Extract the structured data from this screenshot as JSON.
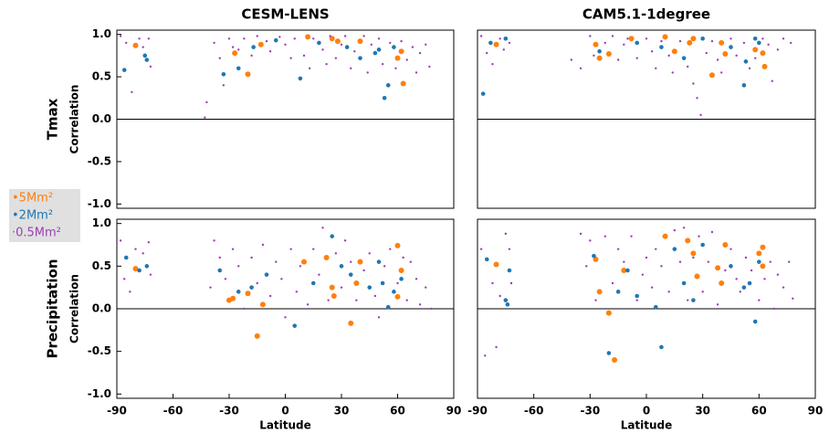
{
  "chart_data": [
    {
      "type": "scatter",
      "title": "CESM-LENS",
      "row_label": "Tmax",
      "ylabel": "Correlation",
      "legend": true,
      "zero_line": true,
      "xlim": [
        -90,
        90
      ],
      "ylim": [
        -1.05,
        1.05
      ],
      "yticks": [
        {
          "value": -1,
          "label": "-1.0"
        },
        -0.5,
        {
          "value": 0,
          "label": "0.0"
        },
        0.5,
        {
          "value": 1,
          "label": "1.0"
        }
      ],
      "series": [
        {
          "name": "•5Mm²",
          "color": "#ff7f0e",
          "x": [
            -80,
            -27,
            -20,
            -13,
            12,
            25,
            28,
            40,
            60,
            62,
            63
          ],
          "values": [
            0.87,
            0.78,
            0.53,
            0.88,
            0.97,
            0.95,
            0.92,
            0.92,
            0.72,
            0.8,
            0.42
          ]
        },
        {
          "name": "•2Mm²",
          "color": "#1f77b4",
          "x": [
            -86,
            -75,
            -74,
            -33,
            -25,
            -17,
            -5,
            8,
            18,
            33,
            40,
            50,
            53,
            55,
            58,
            48
          ],
          "values": [
            0.58,
            0.75,
            0.7,
            0.53,
            0.6,
            0.85,
            0.93,
            0.48,
            0.9,
            0.85,
            0.72,
            0.82,
            0.25,
            0.4,
            0.85,
            0.78
          ]
        },
        {
          "name": "·0.5Mm²",
          "color": "#9b3fb5",
          "x": [
            -88,
            -85,
            -82,
            -78,
            -76,
            -73,
            -72,
            -43,
            -42,
            -38,
            -35,
            -33,
            -30,
            -28,
            -25,
            -22,
            -18,
            -15,
            -10,
            -8,
            -3,
            0,
            3,
            5,
            10,
            13,
            15,
            20,
            22,
            24,
            27,
            30,
            32,
            35,
            37,
            42,
            44,
            46,
            50,
            52,
            56,
            59,
            62,
            65,
            68,
            70,
            72,
            75,
            77
          ],
          "values": [
            0.98,
            0.9,
            0.32,
            0.95,
            0.85,
            0.95,
            0.62,
            0.02,
            0.2,
            0.9,
            0.72,
            0.4,
            0.95,
            0.85,
            0.82,
            0.95,
            0.75,
            0.98,
            0.92,
            0.8,
            0.97,
            0.88,
            0.72,
            0.95,
            0.75,
            0.6,
            0.95,
            0.82,
            0.65,
            0.98,
            0.72,
            0.88,
            0.98,
            0.6,
            0.8,
            0.98,
            0.55,
            0.88,
            0.95,
            0.65,
            0.9,
            0.6,
            0.92,
            0.7,
            0.85,
            0.55,
            0.78,
            0.88,
            0.62
          ]
        }
      ]
    },
    {
      "type": "scatter",
      "title": "CAM5.1-1degree",
      "zero_line": true,
      "xlim": [
        -90,
        90
      ],
      "ylim": [
        -1.05,
        1.05
      ],
      "series": [
        {
          "color": "#ff7f0e",
          "x": [
            -80,
            -27,
            -25,
            -20,
            -8,
            10,
            15,
            23,
            25,
            35,
            40,
            42,
            58,
            62,
            63
          ],
          "values": [
            0.88,
            0.88,
            0.72,
            0.77,
            0.95,
            0.97,
            0.8,
            0.9,
            0.95,
            0.52,
            0.9,
            0.77,
            0.82,
            0.78,
            0.62
          ]
        },
        {
          "color": "#1f77b4",
          "x": [
            -87,
            -83,
            -75,
            -25,
            -5,
            8,
            20,
            30,
            45,
            52,
            53,
            58,
            60
          ],
          "values": [
            0.3,
            0.9,
            0.95,
            0.8,
            0.9,
            0.85,
            0.72,
            0.95,
            0.85,
            0.4,
            0.68,
            0.95,
            0.9
          ]
        },
        {
          "color": "#9b3fb5",
          "x": [
            -88,
            -85,
            -82,
            -78,
            -76,
            -73,
            -40,
            -35,
            -30,
            -28,
            -22,
            -18,
            -15,
            -12,
            -10,
            -5,
            0,
            3,
            5,
            8,
            12,
            14,
            18,
            22,
            25,
            27,
            29,
            32,
            35,
            38,
            40,
            45,
            48,
            52,
            55,
            58,
            62,
            65,
            67,
            70,
            73,
            77
          ],
          "values": [
            0.98,
            0.78,
            0.65,
            0.95,
            0.82,
            0.9,
            0.7,
            0.6,
            0.98,
            0.75,
            0.9,
            0.98,
            0.7,
            0.88,
            0.95,
            0.72,
            0.95,
            0.8,
            0.6,
            0.92,
            0.75,
            0.55,
            0.92,
            0.62,
            0.42,
            0.25,
            0.05,
            0.78,
            0.92,
            0.7,
            0.55,
            0.95,
            0.75,
            0.9,
            0.6,
            0.72,
            0.95,
            0.88,
            0.45,
            0.82,
            0.95,
            0.9
          ]
        }
      ]
    },
    {
      "type": "scatter",
      "row_label": "Precipitation",
      "ylabel": "Correlation",
      "xlabel": "Latitude",
      "zero_line": true,
      "xlim": [
        -90,
        90
      ],
      "ylim": [
        -1.05,
        1.05
      ],
      "xticks": [
        -90,
        -60,
        -30,
        0,
        30,
        60,
        90
      ],
      "yticks": [
        {
          "value": -1,
          "label": "-1.0"
        },
        -0.5,
        {
          "value": 0,
          "label": "0.0"
        },
        0.5,
        {
          "value": 1,
          "label": "1.0"
        }
      ],
      "series": [
        {
          "color": "#ff7f0e",
          "x": [
            -80,
            -30,
            -28,
            -20,
            -15,
            -12,
            10,
            22,
            25,
            26,
            35,
            38,
            40,
            60,
            62,
            60
          ],
          "values": [
            0.47,
            0.1,
            0.12,
            0.18,
            -0.32,
            0.05,
            0.55,
            0.6,
            0.25,
            0.15,
            -0.17,
            0.3,
            0.55,
            0.74,
            0.45,
            0.14
          ]
        },
        {
          "color": "#1f77b4",
          "x": [
            -85,
            -78,
            -74,
            -35,
            -25,
            -18,
            -10,
            5,
            15,
            25,
            30,
            35,
            45,
            52,
            55,
            58,
            62,
            50
          ],
          "values": [
            0.6,
            0.45,
            0.5,
            0.45,
            0.2,
            0.25,
            0.4,
            -0.2,
            0.3,
            0.85,
            0.5,
            0.4,
            0.25,
            0.3,
            0.02,
            0.2,
            0.35,
            0.55
          ]
        },
        {
          "color": "#9b3fb5",
          "x": [
            -88,
            -86,
            -83,
            -80,
            -76,
            -73,
            -72,
            -40,
            -38,
            -35,
            -32,
            -28,
            -25,
            -22,
            -18,
            -15,
            -12,
            -8,
            -5,
            -2,
            0,
            3,
            6,
            8,
            12,
            15,
            18,
            20,
            23,
            27,
            30,
            32,
            35,
            38,
            42,
            45,
            48,
            50,
            53,
            56,
            60,
            63,
            65,
            67,
            70,
            72,
            75,
            78
          ],
          "values": [
            0.8,
            0.35,
            0.2,
            0.7,
            0.65,
            0.78,
            0.4,
            0.25,
            0.8,
            0.6,
            0.35,
            0.7,
            0.5,
            0.0,
            0.6,
            0.3,
            0.75,
            0.15,
            0.55,
            0.35,
            -0.1,
            0.7,
            0.2,
            0.5,
            0.05,
            0.7,
            0.4,
            0.95,
            0.1,
            0.65,
            0.25,
            0.8,
            0.55,
            0.1,
            0.45,
            0.65,
            0.15,
            -0.1,
            0.5,
            0.7,
            0.3,
            0.6,
            0.1,
            0.55,
            0.35,
            0.05,
            0.25,
            0.0
          ]
        }
      ]
    },
    {
      "type": "scatter",
      "xlabel": "Latitude",
      "zero_line": true,
      "xlim": [
        -90,
        90
      ],
      "ylim": [
        -1.05,
        1.05
      ],
      "xticks": [
        -90,
        -60,
        -30,
        0,
        30,
        60,
        90
      ],
      "series": [
        {
          "color": "#ff7f0e",
          "x": [
            -80,
            -27,
            -25,
            -20,
            -17,
            -12,
            10,
            22,
            25,
            27,
            38,
            40,
            42,
            60,
            62,
            62
          ],
          "values": [
            0.52,
            0.58,
            0.2,
            -0.05,
            -0.6,
            0.45,
            0.85,
            0.8,
            0.65,
            0.38,
            0.48,
            0.3,
            0.75,
            0.65,
            0.72,
            0.5
          ]
        },
        {
          "color": "#1f77b4",
          "x": [
            -85,
            -75,
            -74,
            -73,
            -28,
            -20,
            -15,
            -10,
            -5,
            5,
            8,
            15,
            20,
            25,
            30,
            45,
            52,
            55,
            58,
            60
          ],
          "values": [
            0.58,
            0.1,
            0.05,
            0.45,
            0.62,
            -0.52,
            0.2,
            0.45,
            0.15,
            0.02,
            -0.45,
            0.7,
            0.3,
            0.1,
            0.75,
            0.5,
            0.25,
            0.3,
            -0.15,
            0.55
          ]
        },
        {
          "color": "#9b3fb5",
          "x": [
            -88,
            -86,
            -82,
            -80,
            -78,
            -75,
            -73,
            -72,
            -35,
            -32,
            -30,
            -27,
            -22,
            -18,
            -15,
            -12,
            -8,
            -5,
            -2,
            0,
            3,
            5,
            8,
            12,
            15,
            18,
            20,
            22,
            25,
            28,
            30,
            33,
            35,
            38,
            42,
            45,
            48,
            50,
            53,
            56,
            60,
            63,
            66,
            68,
            70,
            73,
            76,
            78
          ],
          "values": [
            0.7,
            -0.55,
            0.3,
            -0.45,
            0.15,
            0.88,
            0.7,
            0.3,
            0.88,
            0.5,
            0.8,
            0.1,
            0.85,
            0.3,
            0.7,
            0.55,
            0.85,
            0.1,
            0.4,
            0.6,
            0.25,
            0.7,
            0.5,
            0.2,
            0.92,
            0.55,
            0.95,
            0.1,
            0.6,
            0.85,
            0.2,
            0.55,
            0.9,
            0.05,
            0.45,
            0.7,
            0.35,
            0.2,
            0.6,
            0.45,
            0.1,
            0.35,
            0.55,
            0.0,
            0.4,
            0.25,
            0.55,
            0.12
          ]
        }
      ]
    }
  ]
}
